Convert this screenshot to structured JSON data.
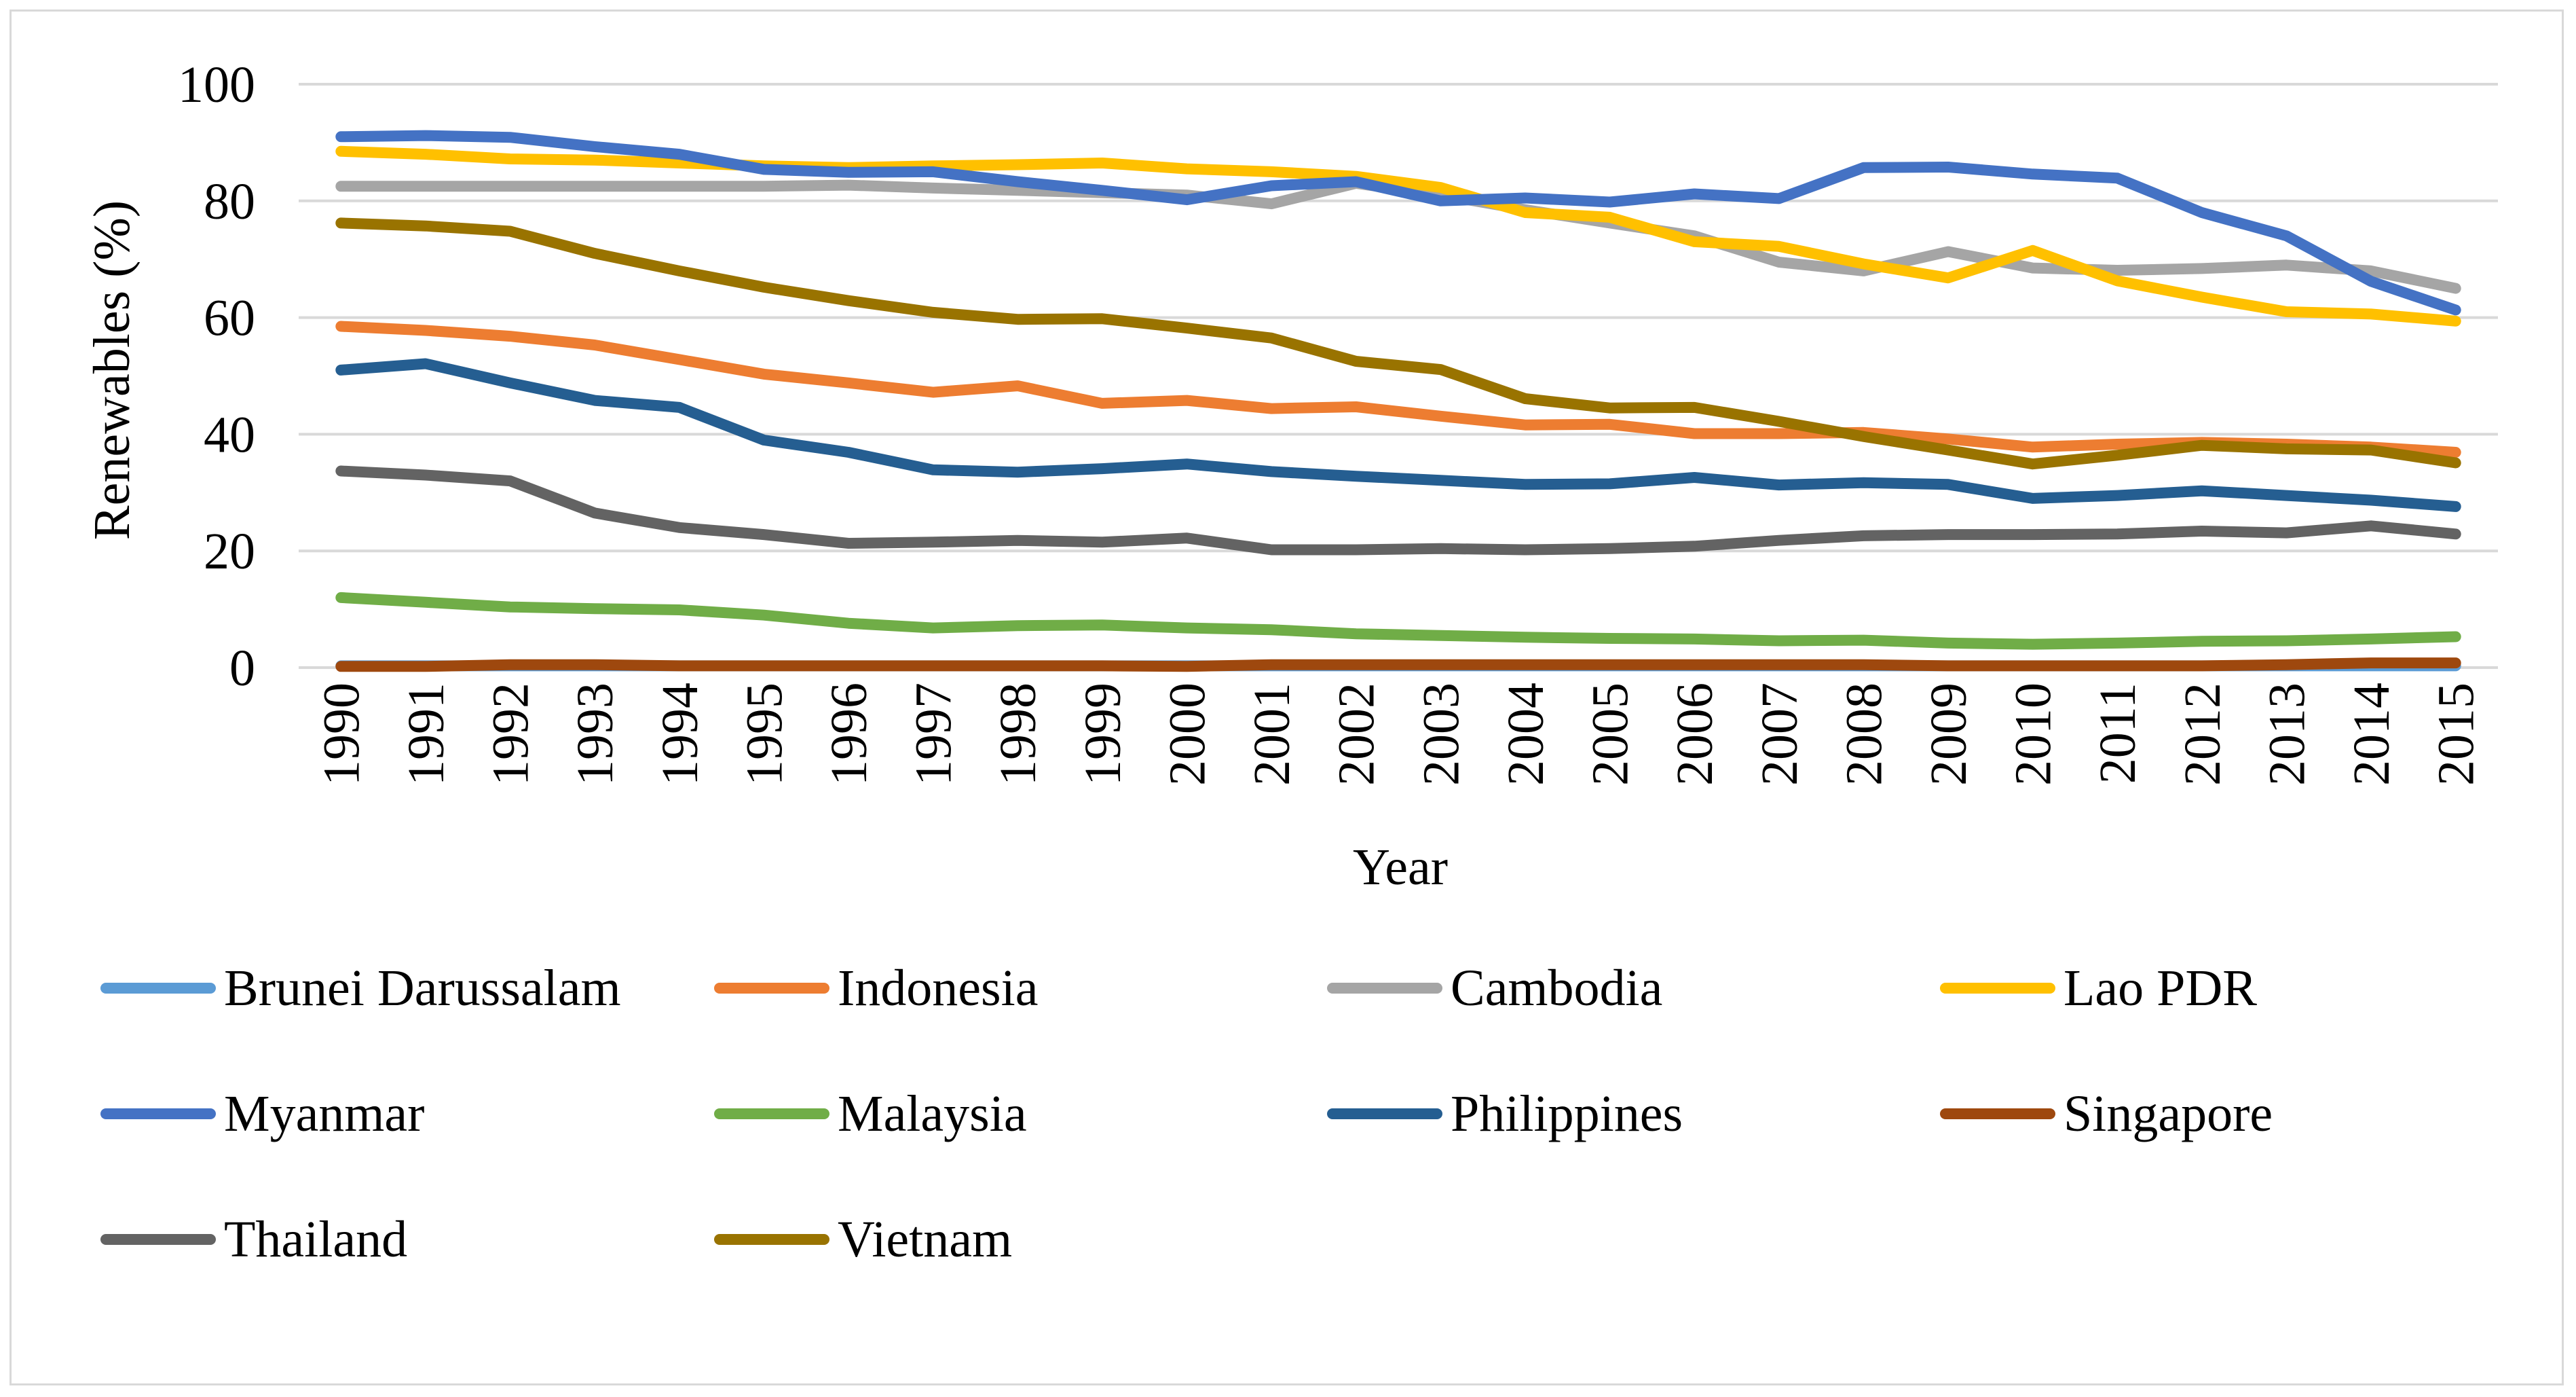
{
  "chart_data": {
    "type": "line",
    "title": "",
    "xlabel": "Year",
    "ylabel": "Renewables (%)",
    "ylim": [
      0,
      100
    ],
    "yticks": [
      0,
      20,
      40,
      60,
      80,
      100
    ],
    "grid": true,
    "legend_position": "bottom",
    "x": [
      "1990",
      "1991",
      "1992",
      "1993",
      "1994",
      "1995",
      "1996",
      "1997",
      "1998",
      "1999",
      "2000",
      "2001",
      "2002",
      "2003",
      "2004",
      "2005",
      "2006",
      "2007",
      "2008",
      "2009",
      "2010",
      "2011",
      "2012",
      "2013",
      "2014",
      "2015"
    ],
    "series": [
      {
        "name": "Brunei Darussalam",
        "color": "#5b9bd5",
        "values": [
          0.3,
          0.3,
          0.3,
          0.3,
          0.3,
          0.3,
          0.3,
          0.3,
          0.3,
          0.3,
          0.3,
          0.3,
          0.3,
          0.3,
          0.3,
          0.3,
          0.3,
          0.3,
          0.3,
          0.3,
          0.3,
          0.3,
          0.3,
          0.3,
          0.3,
          0.3
        ]
      },
      {
        "name": "Indonesia",
        "color": "#ed7d31",
        "values": [
          58.5,
          57.8,
          56.8,
          55.3,
          52.8,
          50.3,
          48.8,
          47.2,
          48.3,
          45.3,
          45.8,
          44.4,
          44.7,
          43.1,
          41.6,
          41.7,
          40.1,
          40.1,
          40.3,
          39.2,
          37.8,
          38.3,
          38.6,
          38.3,
          37.8,
          36.9
        ]
      },
      {
        "name": "Cambodia",
        "color": "#a5a5a5",
        "values": [
          82.5,
          82.5,
          82.5,
          82.5,
          82.5,
          82.5,
          82.7,
          82.2,
          81.8,
          81.4,
          81.0,
          79.5,
          83.0,
          81.0,
          78.5,
          76.2,
          74.0,
          69.5,
          68.0,
          71.3,
          68.5,
          68.1,
          68.4,
          69.0,
          68.0,
          65.0
        ]
      },
      {
        "name": "Lao PDR",
        "color": "#ffc000",
        "values": [
          88.5,
          88.0,
          87.2,
          87.0,
          86.5,
          86.0,
          85.7,
          86.0,
          86.2,
          86.5,
          85.5,
          85.0,
          84.2,
          82.3,
          78.0,
          77.2,
          73.0,
          72.2,
          69.2,
          66.8,
          71.5,
          66.3,
          63.5,
          61.0,
          60.6,
          59.4
        ]
      },
      {
        "name": "Myanmar",
        "color": "#4472c4",
        "values": [
          91.0,
          91.2,
          90.9,
          89.3,
          88.0,
          85.4,
          84.9,
          85.0,
          83.3,
          81.8,
          80.2,
          82.6,
          83.3,
          80.0,
          80.5,
          79.8,
          81.2,
          80.4,
          85.7,
          85.8,
          84.6,
          83.9,
          78.0,
          74.0,
          66.2,
          61.3
        ]
      },
      {
        "name": "Malaysia",
        "color": "#70ad47",
        "values": [
          12.0,
          11.2,
          10.4,
          10.1,
          9.9,
          9.0,
          7.6,
          6.8,
          7.2,
          7.3,
          6.8,
          6.5,
          5.8,
          5.5,
          5.2,
          5.0,
          4.9,
          4.6,
          4.7,
          4.2,
          4.0,
          4.2,
          4.5,
          4.6,
          4.9,
          5.3
        ]
      },
      {
        "name": "Philippines",
        "color": "#255e91",
        "values": [
          51.0,
          52.1,
          48.8,
          45.8,
          44.6,
          39.0,
          36.9,
          33.9,
          33.5,
          34.1,
          34.9,
          33.6,
          32.8,
          32.1,
          31.4,
          31.5,
          32.6,
          31.3,
          31.7,
          31.4,
          29.0,
          29.5,
          30.3,
          29.5,
          28.7,
          27.6
        ]
      },
      {
        "name": "Singapore",
        "color": "#9e480e",
        "values": [
          0.2,
          0.2,
          0.5,
          0.5,
          0.3,
          0.3,
          0.3,
          0.3,
          0.3,
          0.3,
          0.2,
          0.5,
          0.5,
          0.5,
          0.5,
          0.5,
          0.5,
          0.5,
          0.5,
          0.3,
          0.3,
          0.3,
          0.3,
          0.5,
          0.8,
          0.8
        ]
      },
      {
        "name": "Thailand",
        "color": "#636363",
        "values": [
          33.7,
          33.0,
          32.0,
          26.5,
          24.0,
          22.8,
          21.3,
          21.5,
          21.8,
          21.5,
          22.2,
          20.2,
          20.2,
          20.4,
          20.2,
          20.4,
          20.8,
          21.8,
          22.6,
          22.8,
          22.8,
          22.9,
          23.4,
          23.1,
          24.3,
          22.9
        ]
      },
      {
        "name": "Vietnam",
        "color": "#997300",
        "values": [
          76.2,
          75.7,
          74.8,
          71.0,
          68.0,
          65.2,
          62.9,
          60.9,
          59.7,
          59.8,
          58.2,
          56.5,
          52.5,
          51.1,
          46.1,
          44.5,
          44.6,
          42.2,
          39.6,
          37.3,
          34.9,
          36.4,
          38.1,
          37.5,
          37.3,
          35.1
        ]
      }
    ]
  }
}
